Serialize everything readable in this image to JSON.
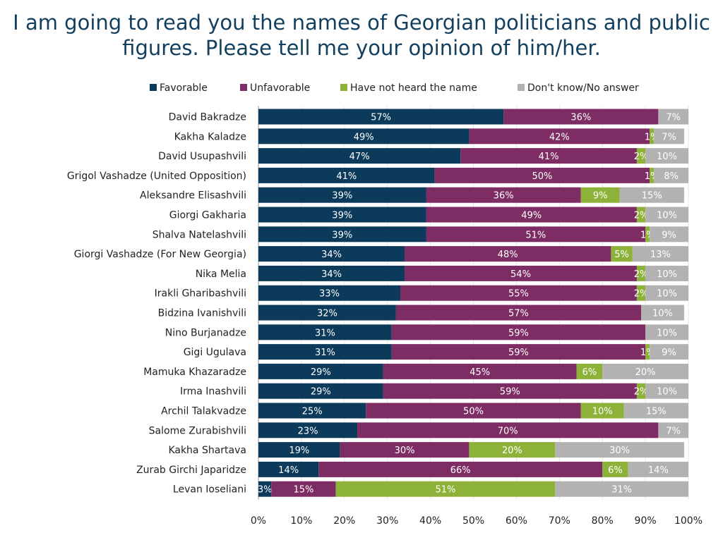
{
  "title_lines": [
    "I am going to read you the names of Georgian politicians and public",
    "figures. Please tell me your opinion of him/her."
  ],
  "colors": {
    "Favorable": "#0b3a5a",
    "Unfavorable": "#7d2c64",
    "Have not heard the name": "#8db23a",
    "Don't know/No answer": "#b2b2b2"
  },
  "chart_data": {
    "type": "bar",
    "orientation": "horizontal",
    "stacked": true,
    "title": "I am going to read you the names of Georgian politicians and public figures. Please tell me your opinion of him/her.",
    "xlim": [
      0,
      100
    ],
    "x_ticks": [
      "0%",
      "10%",
      "20%",
      "30%",
      "40%",
      "50%",
      "60%",
      "70%",
      "80%",
      "90%",
      "100%"
    ],
    "legend_position": "top",
    "categories": [
      "David Bakradze",
      "Kakha Kaladze",
      "David Usupashvili",
      "Grigol Vashadze (United Opposition)",
      "Aleksandre Elisashvili",
      "Giorgi Gakharia",
      "Shalva Natelashvili",
      "Giorgi Vashadze (For New Georgia)",
      "Nika Melia",
      "Irakli Gharibashvili",
      "Bidzina Ivanishvili",
      "Nino Burjanadze",
      "Gigi Ugulava",
      "Mamuka Khazaradze",
      "Irma Inashvili",
      "Archil Talakvadze",
      "Salome Zurabishvili",
      "Kakha Shartava",
      "Zurab Girchi Japaridze",
      "Levan Ioseliani"
    ],
    "series": [
      {
        "name": "Favorable",
        "values": [
          57,
          49,
          47,
          41,
          39,
          39,
          39,
          34,
          34,
          33,
          32,
          31,
          31,
          29,
          29,
          25,
          23,
          19,
          14,
          3
        ]
      },
      {
        "name": "Unfavorable",
        "values": [
          36,
          42,
          41,
          50,
          36,
          49,
          51,
          48,
          54,
          55,
          57,
          59,
          59,
          45,
          59,
          50,
          70,
          30,
          66,
          15
        ]
      },
      {
        "name": "Have not heard the name",
        "values": [
          0,
          1,
          2,
          1,
          9,
          2,
          1,
          5,
          2,
          2,
          0,
          0,
          1,
          6,
          2,
          10,
          0,
          20,
          6,
          51
        ]
      },
      {
        "name": "Don't know/No answer",
        "values": [
          7,
          7,
          10,
          8,
          15,
          10,
          9,
          13,
          10,
          10,
          10,
          10,
          9,
          20,
          10,
          15,
          7,
          30,
          14,
          31
        ]
      }
    ]
  }
}
